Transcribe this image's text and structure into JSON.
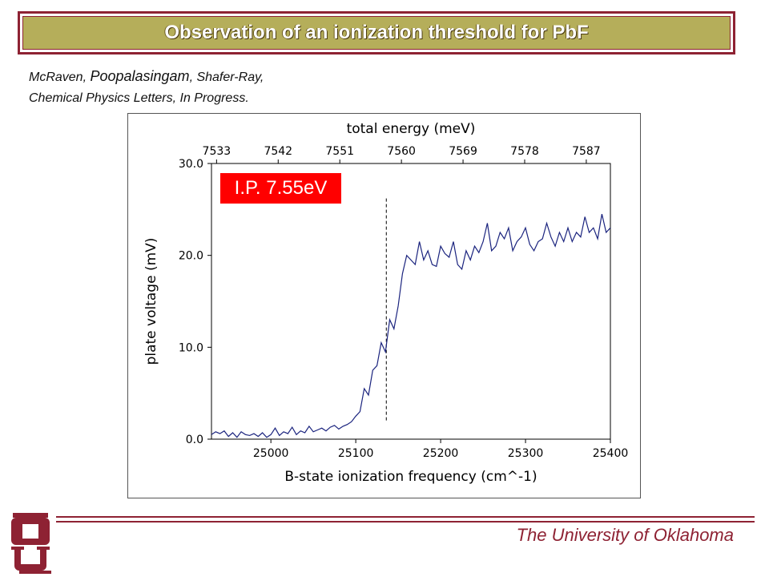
{
  "slide": {
    "title": "Observation of an ionization threshold for PbF",
    "authors": {
      "a1": "McRaven, ",
      "a2": "Poopalasingam",
      "a3": ", Shafer-Ray,",
      "citation": "Chemical Physics Letters, In Progress."
    },
    "footer": "The University of Oklahoma",
    "logo_icon": "ou-logo-icon"
  },
  "colors": {
    "banner_fill": "#b5ae5a",
    "banner_border": "#8e2233",
    "line": "#1a237e",
    "ip_box": "#ff0000",
    "footer_text": "#8e2233"
  },
  "chart_data": {
    "type": "line",
    "title": "",
    "xlabel": "B-state ionization frequency (cm^-1)",
    "ylabel": "plate voltage (mV)",
    "top_xlabel": "total energy (meV)",
    "xlim": [
      24930,
      25400
    ],
    "ylim": [
      0,
      30
    ],
    "xticks": [
      25000,
      25100,
      25200,
      25300,
      25400
    ],
    "yticks": [
      0,
      10,
      20,
      30
    ],
    "ytick_labels": [
      "0.0",
      "10.0",
      "20.0",
      "30.0"
    ],
    "top_ticks": [
      7533,
      7542,
      7551,
      7560,
      7569,
      7578,
      7587
    ],
    "top_tick_positions_cm": [
      24936,
      25008.6,
      25081.2,
      25153.8,
      25226.4,
      25299,
      25371.6
    ],
    "annotation": {
      "label": "I.P. 7.55eV",
      "x": 25136,
      "y_range": [
        1.8,
        26.2
      ]
    },
    "grid": false,
    "series": [
      {
        "x": [
          24930,
          24935,
          24940,
          24945,
          24950,
          24955,
          24960,
          24965,
          24970,
          24975,
          24980,
          24985,
          24990,
          24995,
          25000,
          25005,
          25010,
          25015,
          25020,
          25025,
          25030,
          25035,
          25040,
          25045,
          25050,
          25055,
          25060,
          25065,
          25070,
          25075,
          25080,
          25085,
          25090,
          25095,
          25100,
          25105,
          25110,
          25115,
          25120,
          25125,
          25130,
          25135,
          25140,
          25145,
          25150,
          25155,
          25160,
          25165,
          25170,
          25175,
          25180,
          25185,
          25190,
          25195,
          25200,
          25205,
          25210,
          25215,
          25220,
          25225,
          25230,
          25235,
          25240,
          25245,
          25250,
          25255,
          25260,
          25265,
          25270,
          25275,
          25280,
          25285,
          25290,
          25295,
          25300,
          25305,
          25310,
          25315,
          25320,
          25325,
          25330,
          25335,
          25340,
          25345,
          25350,
          25355,
          25360,
          25365,
          25370,
          25375,
          25380,
          25385,
          25390,
          25395,
          25400
        ],
        "y": [
          0.5,
          0.8,
          0.6,
          0.9,
          0.3,
          0.7,
          0.2,
          0.8,
          0.5,
          0.4,
          0.6,
          0.3,
          0.7,
          0.2,
          0.5,
          1.2,
          0.4,
          0.8,
          0.6,
          1.3,
          0.5,
          0.9,
          0.7,
          1.4,
          0.8,
          1.0,
          1.2,
          0.9,
          1.3,
          1.5,
          1.1,
          1.4,
          1.6,
          1.9,
          2.5,
          3.0,
          5.5,
          4.8,
          7.5,
          8.0,
          10.5,
          9.5,
          13.0,
          12.0,
          14.5,
          18.0,
          20.0,
          19.5,
          19.0,
          21.5,
          19.5,
          20.5,
          19.0,
          18.8,
          21.0,
          20.2,
          19.8,
          21.5,
          19.0,
          18.5,
          20.5,
          19.5,
          21.0,
          20.3,
          21.5,
          23.5,
          20.5,
          21.0,
          22.5,
          21.8,
          23.0,
          20.5,
          21.5,
          22.0,
          23.0,
          21.2,
          20.5,
          21.5,
          21.8,
          23.5,
          22.0,
          21.0,
          22.5,
          21.5,
          23.0,
          21.5,
          22.5,
          22.0,
          24.2,
          22.5,
          23.0,
          21.8,
          24.5,
          22.5,
          23.0
        ]
      }
    ]
  }
}
